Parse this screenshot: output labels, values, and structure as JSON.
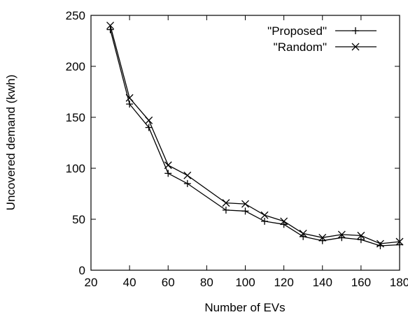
{
  "chart_data": {
    "type": "line",
    "xlabel": "Number of EVs",
    "ylabel": "Uncovered demand (kwh)",
    "xlim": [
      20,
      180
    ],
    "ylim": [
      0,
      250
    ],
    "xticks": [
      20,
      40,
      60,
      80,
      100,
      120,
      140,
      160,
      180
    ],
    "yticks": [
      0,
      50,
      100,
      150,
      200,
      250
    ],
    "grid": false,
    "legend_position": "top-right",
    "series": [
      {
        "name": "\"Proposed\"",
        "marker": "plus",
        "x": [
          30,
          40,
          50,
          60,
          70,
          90,
          100,
          110,
          120,
          130,
          140,
          150,
          160,
          170,
          180
        ],
        "y": [
          236,
          163,
          140,
          95,
          85,
          59,
          58,
          48,
          45,
          33,
          29,
          32,
          30,
          24,
          25
        ]
      },
      {
        "name": "\"Random\"",
        "marker": "cross",
        "x": [
          30,
          40,
          50,
          60,
          70,
          90,
          100,
          110,
          120,
          130,
          140,
          150,
          160,
          170,
          180
        ],
        "y": [
          240,
          169,
          147,
          103,
          93,
          66,
          65,
          54,
          48,
          36,
          32,
          35,
          34,
          26,
          28
        ]
      }
    ]
  }
}
